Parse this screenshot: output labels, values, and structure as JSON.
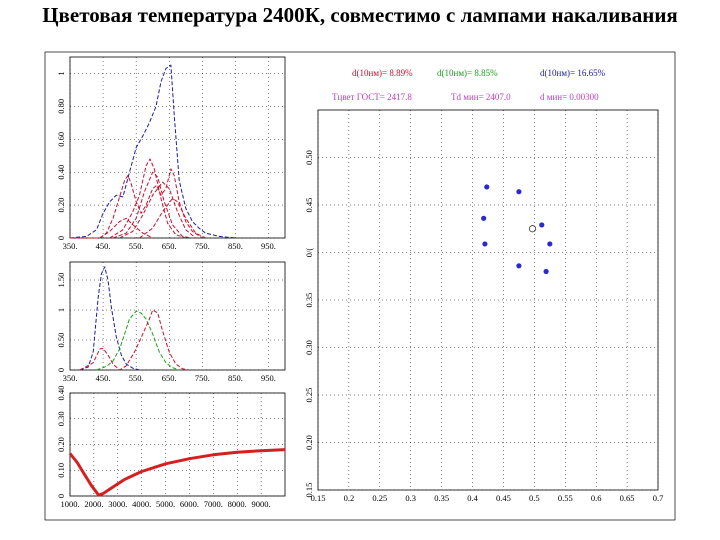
{
  "title": "Цветовая температура 2400К, совместимо с лампами накаливания",
  "info": {
    "row1": [
      {
        "text": "d(10нм)=   8.89%",
        "color": "#c8102e"
      },
      {
        "text": "d(10нм)=   8.85%",
        "color": "#1aa01a"
      },
      {
        "text": "d(10нм)=   16.65%",
        "color": "#1a1aa6"
      }
    ],
    "row2": [
      {
        "text": "Тцвет ГОСТ=  2417.8",
        "color": "#c03cc0"
      },
      {
        "text": "Td мин=   2407.0",
        "color": "#c03cc0"
      },
      {
        "text": "d мин= 0.00300",
        "color": "#c03cc0"
      }
    ]
  },
  "chart_data": [
    {
      "id": "spectra",
      "type": "line",
      "xlim": [
        350,
        1000
      ],
      "ylim": [
        0,
        1.1
      ],
      "x_ticks": [
        "350.",
        "450.",
        "550.",
        "650.",
        "750.",
        "850.",
        "950."
      ],
      "x_tick_values": [
        350,
        450,
        550,
        650,
        750,
        850,
        950
      ],
      "y_ticks": [
        "0",
        "0.20",
        "0.40",
        "0.60",
        "0.80",
        "1"
      ],
      "y_tick_values": [
        0,
        0.2,
        0.4,
        0.6,
        0.8,
        1.0
      ],
      "series": [
        {
          "color": "#1a1aa6",
          "dash": "dash",
          "points": [
            [
              350,
              0
            ],
            [
              400,
              0.01
            ],
            [
              430,
              0.05
            ],
            [
              450,
              0.15
            ],
            [
              470,
              0.22
            ],
            [
              490,
              0.26
            ],
            [
              510,
              0.25
            ],
            [
              530,
              0.4
            ],
            [
              550,
              0.55
            ],
            [
              570,
              0.62
            ],
            [
              590,
              0.7
            ],
            [
              610,
              0.8
            ],
            [
              625,
              0.95
            ],
            [
              640,
              1.03
            ],
            [
              655,
              1.05
            ],
            [
              665,
              0.75
            ],
            [
              680,
              0.35
            ],
            [
              700,
              0.18
            ],
            [
              720,
              0.1
            ],
            [
              740,
              0.06
            ],
            [
              760,
              0.03
            ],
            [
              780,
              0.02
            ],
            [
              800,
              0.01
            ],
            [
              850,
              0
            ]
          ]
        },
        {
          "color": "#c8102e",
          "dash": "dash",
          "points": [
            [
              350,
              0
            ],
            [
              440,
              0
            ],
            [
              460,
              0.03
            ],
            [
              480,
              0.12
            ],
            [
              500,
              0.25
            ],
            [
              515,
              0.35
            ],
            [
              525,
              0.38
            ],
            [
              535,
              0.33
            ],
            [
              550,
              0.22
            ],
            [
              565,
              0.15
            ],
            [
              580,
              0.2
            ],
            [
              600,
              0.3
            ],
            [
              612,
              0.32
            ],
            [
              625,
              0.26
            ],
            [
              640,
              0.3
            ],
            [
              655,
              0.42
            ],
            [
              665,
              0.38
            ],
            [
              680,
              0.22
            ],
            [
              700,
              0.1
            ],
            [
              720,
              0.04
            ],
            [
              750,
              0
            ]
          ]
        },
        {
          "color": "#c8102e",
          "dash": "dash",
          "points": [
            [
              470,
              0
            ],
            [
              510,
              0.05
            ],
            [
              540,
              0.16
            ],
            [
              560,
              0.26
            ],
            [
              580,
              0.44
            ],
            [
              592,
              0.48
            ],
            [
              605,
              0.42
            ],
            [
              625,
              0.24
            ],
            [
              645,
              0.09
            ],
            [
              670,
              0.02
            ],
            [
              700,
              0
            ]
          ]
        },
        {
          "color": "#c8102e",
          "dash": "dash",
          "points": [
            [
              480,
              0
            ],
            [
              520,
              0.03
            ],
            [
              550,
              0.12
            ],
            [
              575,
              0.28
            ],
            [
              600,
              0.4
            ],
            [
              615,
              0.37
            ],
            [
              635,
              0.22
            ],
            [
              660,
              0.08
            ],
            [
              690,
              0.01
            ],
            [
              720,
              0
            ]
          ]
        },
        {
          "color": "#c8102e",
          "dash": "dash",
          "points": [
            [
              500,
              0
            ],
            [
              540,
              0.04
            ],
            [
              570,
              0.14
            ],
            [
              600,
              0.26
            ],
            [
              630,
              0.34
            ],
            [
              650,
              0.3
            ],
            [
              675,
              0.16
            ],
            [
              700,
              0.05
            ],
            [
              730,
              0
            ]
          ]
        },
        {
          "color": "#c8102e",
          "dash": "dash",
          "points": [
            [
              440,
              0
            ],
            [
              470,
              0.04
            ],
            [
              500,
              0.1
            ],
            [
              520,
              0.12
            ],
            [
              540,
              0.08
            ],
            [
              570,
              0.03
            ],
            [
              600,
              0
            ]
          ]
        },
        {
          "color": "#c8102e",
          "dash": "dash",
          "points": [
            [
              560,
              0
            ],
            [
              600,
              0.06
            ],
            [
              630,
              0.16
            ],
            [
              660,
              0.24
            ],
            [
              675,
              0.22
            ],
            [
              700,
              0.12
            ],
            [
              730,
              0.03
            ],
            [
              760,
              0
            ]
          ]
        }
      ]
    },
    {
      "id": "cmf",
      "type": "line",
      "xlim": [
        350,
        1000
      ],
      "ylim": [
        0,
        1.8
      ],
      "x_ticks": [
        "350.",
        "450.",
        "550.",
        "650.",
        "750.",
        "850.",
        "950."
      ],
      "x_tick_values": [
        350,
        450,
        550,
        650,
        750,
        850,
        950
      ],
      "y_ticks": [
        "0",
        "0.50",
        "1",
        "1.50"
      ],
      "y_tick_values": [
        0,
        0.5,
        1.0,
        1.5
      ],
      "series": [
        {
          "color": "#1a1aa6",
          "dash": "dash",
          "points": [
            [
              380,
              0
            ],
            [
              405,
              0.05
            ],
            [
              420,
              0.3
            ],
            [
              435,
              1.2
            ],
            [
              445,
              1.6
            ],
            [
              455,
              1.72
            ],
            [
              465,
              1.5
            ],
            [
              475,
              1.05
            ],
            [
              490,
              0.55
            ],
            [
              505,
              0.25
            ],
            [
              520,
              0.1
            ],
            [
              540,
              0.03
            ],
            [
              560,
              0
            ]
          ]
        },
        {
          "color": "#1aa01a",
          "dash": "dash",
          "points": [
            [
              430,
              0
            ],
            [
              460,
              0.06
            ],
            [
              480,
              0.15
            ],
            [
              500,
              0.35
            ],
            [
              515,
              0.6
            ],
            [
              530,
              0.85
            ],
            [
              550,
              0.98
            ],
            [
              565,
              0.95
            ],
            [
              580,
              0.85
            ],
            [
              600,
              0.6
            ],
            [
              620,
              0.3
            ],
            [
              640,
              0.12
            ],
            [
              660,
              0.04
            ],
            [
              680,
              0
            ]
          ]
        },
        {
          "color": "#c8102e",
          "dash": "dash",
          "points": [
            [
              380,
              0
            ],
            [
              420,
              0.12
            ],
            [
              440,
              0.35
            ],
            [
              450,
              0.36
            ],
            [
              465,
              0.25
            ],
            [
              480,
              0.1
            ],
            [
              500,
              0
            ],
            [
              520,
              0.07
            ],
            [
              545,
              0.3
            ],
            [
              570,
              0.6
            ],
            [
              590,
              0.85
            ],
            [
              600,
              1.0
            ],
            [
              615,
              0.95
            ],
            [
              630,
              0.65
            ],
            [
              650,
              0.3
            ],
            [
              670,
              0.1
            ],
            [
              690,
              0.02
            ],
            [
              710,
              0
            ]
          ]
        }
      ]
    },
    {
      "id": "temperature",
      "type": "line",
      "xlim": [
        1000,
        10000
      ],
      "ylim": [
        0,
        0.4
      ],
      "x_ticks": [
        "1000.",
        "2000.",
        "3000.",
        "4000.",
        "5000.",
        "6000.",
        "7000.",
        "8000.",
        "9000."
      ],
      "x_tick_values": [
        1000,
        2000,
        3000,
        4000,
        5000,
        6000,
        7000,
        8000,
        9000
      ],
      "y_ticks": [
        "0",
        "0.10",
        "0.20",
        "0.30",
        "0.40"
      ],
      "y_tick_values": [
        0,
        0.1,
        0.2,
        0.3,
        0.4
      ],
      "series": [
        {
          "color": "#d42020",
          "dash": "solid",
          "points": [
            [
              1000,
              0.165
            ],
            [
              1300,
              0.13
            ],
            [
              1600,
              0.085
            ],
            [
              1900,
              0.04
            ],
            [
              2200,
              0.003
            ],
            [
              2400,
              0.01
            ],
            [
              2800,
              0.035
            ],
            [
              3300,
              0.065
            ],
            [
              4000,
              0.095
            ],
            [
              5000,
              0.125
            ],
            [
              6000,
              0.145
            ],
            [
              7000,
              0.16
            ],
            [
              8000,
              0.17
            ],
            [
              9000,
              0.176
            ],
            [
              10000,
              0.18
            ]
          ]
        }
      ]
    },
    {
      "id": "chromaticity",
      "type": "scatter",
      "xlim": [
        0.15,
        0.7
      ],
      "ylim": [
        0.15,
        0.55
      ],
      "x_ticks": [
        "0.15",
        "0.2",
        "0.25",
        "0.3",
        "0.35",
        "0.4",
        "0.45",
        "0.5",
        "0.55",
        "0.6",
        "0.65",
        "0.7"
      ],
      "x_tick_values": [
        0.15,
        0.2,
        0.25,
        0.3,
        0.35,
        0.4,
        0.45,
        0.5,
        0.55,
        0.6,
        0.65,
        0.7
      ],
      "y_ticks": [
        "0.15",
        "0.20",
        "0.25",
        "0.30",
        "0.35",
        "0/(",
        "0.45",
        "0.50"
      ],
      "y_tick_values": [
        0.15,
        0.2,
        0.25,
        0.3,
        0.35,
        0.4,
        0.45,
        0.5
      ],
      "points": [
        {
          "x": 0.423,
          "y": 0.469
        },
        {
          "x": 0.475,
          "y": 0.464
        },
        {
          "x": 0.418,
          "y": 0.436
        },
        {
          "x": 0.512,
          "y": 0.429
        },
        {
          "x": 0.42,
          "y": 0.409
        },
        {
          "x": 0.525,
          "y": 0.409
        },
        {
          "x": 0.475,
          "y": 0.386
        },
        {
          "x": 0.519,
          "y": 0.38
        }
      ],
      "open_points": [
        {
          "x": 0.497,
          "y": 0.425
        }
      ],
      "point_color": "#2a2ad0"
    }
  ]
}
